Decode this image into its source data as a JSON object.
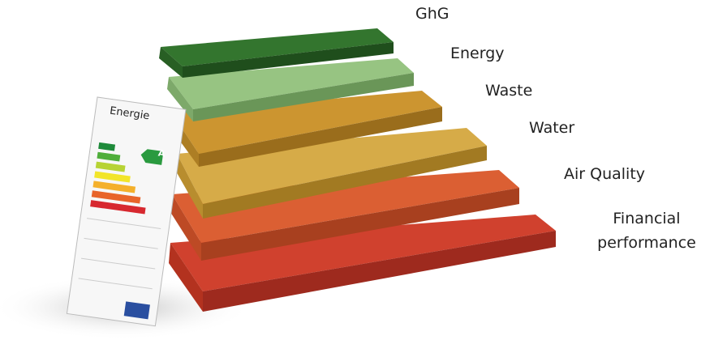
{
  "tag": {
    "title": "Energie",
    "rating": "A"
  },
  "labels": [
    "GhG",
    "Energy",
    "Waste",
    "Water",
    "Air Quality",
    "Financial performance"
  ]
}
